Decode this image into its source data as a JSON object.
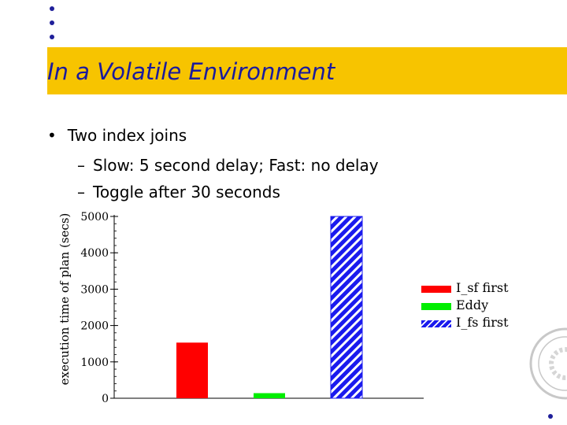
{
  "slide": {
    "title": "In a Volatile Environment",
    "bullet": "Two index joins",
    "sub_bullets": [
      "Slow: 5 second delay; Fast: no delay",
      "Toggle after 30 seconds"
    ]
  },
  "colors": {
    "title_band": "#f7c400",
    "title_text": "#1a1a9e",
    "bullet_dots": "#1f1f9a"
  },
  "chart_data": {
    "type": "bar",
    "ylabel": "execution time of plan (secs)",
    "xlabel": "",
    "ylim": [
      0,
      5000
    ],
    "yticks": [
      0,
      1000,
      2000,
      3000,
      4000,
      5000
    ],
    "series": [
      {
        "name": "I_sf first",
        "values": [
          1530
        ],
        "color": "#ff0000",
        "pattern": "solid"
      },
      {
        "name": "Eddy",
        "values": [
          140
        ],
        "color": "#00ee00",
        "pattern": "solid"
      },
      {
        "name": "I_fs first",
        "values": [
          5000
        ],
        "color": "#1a1aee",
        "pattern": "diagonal-hatch"
      }
    ],
    "legend_position": "right",
    "grid": false
  }
}
